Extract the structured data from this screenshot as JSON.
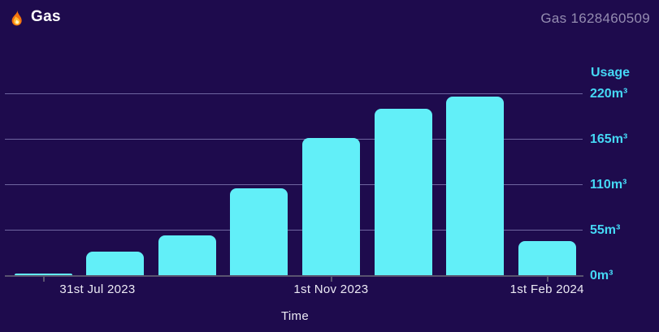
{
  "header": {
    "title": "Gas",
    "meter_id": "Gas 1628460509"
  },
  "colors": {
    "background": "#1E0B4D",
    "bar": "#62EFF8",
    "y_axis_text": "#45D8F5",
    "gridline": "#6F66A0",
    "axis_line": "#59536F",
    "x_axis_text": "#ECEAF4",
    "meter_id_text": "#948CB0",
    "title_text": "#FFFFFF",
    "flame_outer": "#F3710D",
    "flame_inner": "#FFD83B"
  },
  "chart_data": {
    "type": "bar",
    "values": [
      2,
      28,
      48,
      105,
      166,
      201,
      216,
      41
    ],
    "bar_count": 8,
    "x_tick_labels": [
      {
        "bar_index": 0,
        "label": "31st Jul 2023"
      },
      {
        "bar_index": 4,
        "label": "1st Nov 2023"
      },
      {
        "bar_index": 7,
        "label": "1st Feb 2024"
      }
    ],
    "xlabel": "Time",
    "y_axis": {
      "title": "Usage",
      "unit": "m³",
      "ticks": [
        {
          "value": 220,
          "label": "220m³"
        },
        {
          "value": 165,
          "label": "165m³"
        },
        {
          "value": 110,
          "label": "110m³"
        },
        {
          "value": 55,
          "label": "55m³"
        },
        {
          "value": 0,
          "label": "0m³"
        }
      ],
      "max": 220
    },
    "ylim": [
      0,
      220
    ],
    "grid": true,
    "legend": false
  }
}
